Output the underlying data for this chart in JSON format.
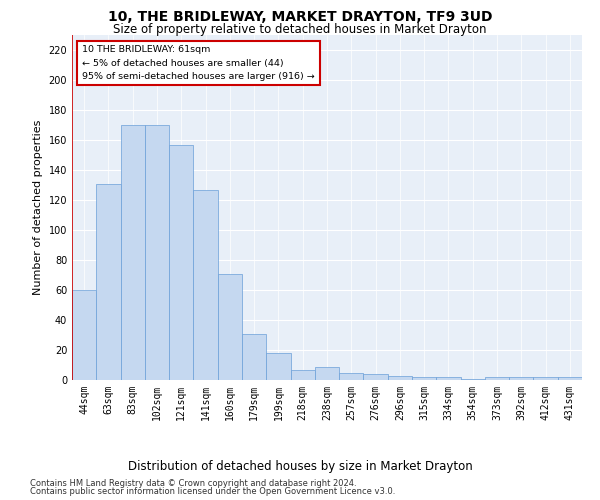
{
  "title": "10, THE BRIDLEWAY, MARKET DRAYTON, TF9 3UD",
  "subtitle": "Size of property relative to detached houses in Market Drayton",
  "xlabel": "Distribution of detached houses by size in Market Drayton",
  "ylabel": "Number of detached properties",
  "bar_labels": [
    "44sqm",
    "63sqm",
    "83sqm",
    "102sqm",
    "121sqm",
    "141sqm",
    "160sqm",
    "179sqm",
    "199sqm",
    "218sqm",
    "238sqm",
    "257sqm",
    "276sqm",
    "296sqm",
    "315sqm",
    "334sqm",
    "354sqm",
    "373sqm",
    "392sqm",
    "412sqm",
    "431sqm"
  ],
  "bar_values": [
    60,
    131,
    170,
    170,
    157,
    127,
    71,
    31,
    18,
    7,
    9,
    5,
    4,
    3,
    2,
    2,
    1,
    2,
    2,
    2,
    2
  ],
  "bar_color": "#c5d8f0",
  "bar_edge_color": "#6a9fd8",
  "annotation_text": "10 THE BRIDLEWAY: 61sqm\n← 5% of detached houses are smaller (44)\n95% of semi-detached houses are larger (916) →",
  "annotation_box_color": "#ffffff",
  "annotation_box_edge": "#cc0000",
  "vline_color": "#cc0000",
  "ylim": [
    0,
    230
  ],
  "yticks": [
    0,
    20,
    40,
    60,
    80,
    100,
    120,
    140,
    160,
    180,
    200,
    220
  ],
  "footer1": "Contains HM Land Registry data © Crown copyright and database right 2024.",
  "footer2": "Contains public sector information licensed under the Open Government Licence v3.0.",
  "bg_color": "#e8eff8",
  "title_fontsize": 10,
  "subtitle_fontsize": 8.5,
  "axis_label_fontsize": 8,
  "tick_fontsize": 7,
  "footer_fontsize": 6
}
